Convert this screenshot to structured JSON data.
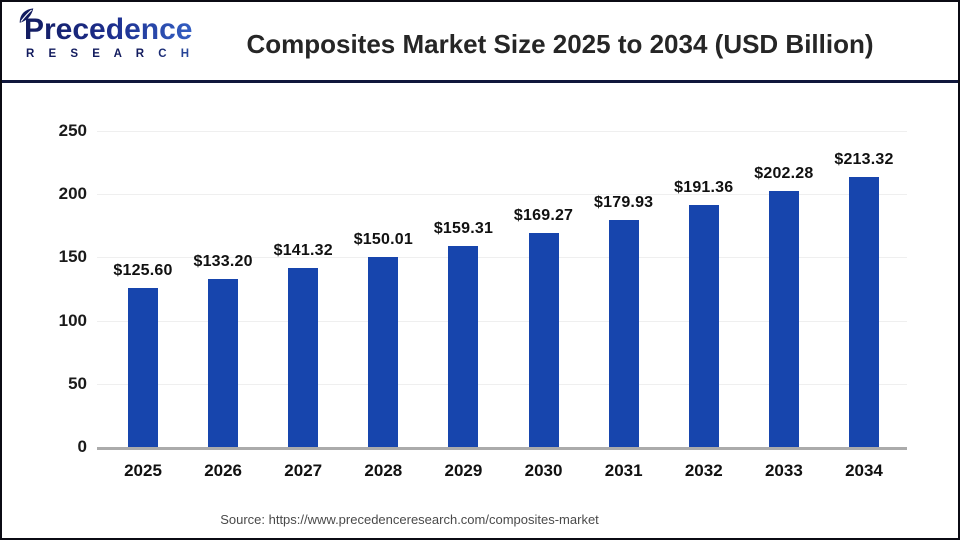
{
  "header": {
    "logo": {
      "brand": "Precedence",
      "sub": "R E S E A R C H"
    },
    "title": "Composites Market Size 2025 to 2034 (USD Billion)"
  },
  "chart_data": {
    "type": "bar",
    "title": "Composites Market Size 2025 to 2034 (USD Billion)",
    "categories": [
      "2025",
      "2026",
      "2027",
      "2028",
      "2029",
      "2030",
      "2031",
      "2032",
      "2033",
      "2034"
    ],
    "values": [
      125.6,
      133.2,
      141.32,
      150.01,
      159.31,
      169.27,
      179.93,
      191.36,
      202.28,
      213.32
    ],
    "value_labels": [
      "$125.60",
      "$133.20",
      "$141.32",
      "$150.01",
      "$159.31",
      "$169.27",
      "$179.93",
      "$191.36",
      "$202.28",
      "$213.32"
    ],
    "xlabel": "",
    "ylabel": "",
    "ylim": [
      0,
      250
    ],
    "yticks": [
      0,
      50,
      100,
      150,
      200,
      250
    ],
    "grid": true,
    "legend": "none",
    "bar_color": "#1745ad"
  },
  "footer": {
    "source": "Source: https://www.precedenceresearch.com/composites-market"
  }
}
